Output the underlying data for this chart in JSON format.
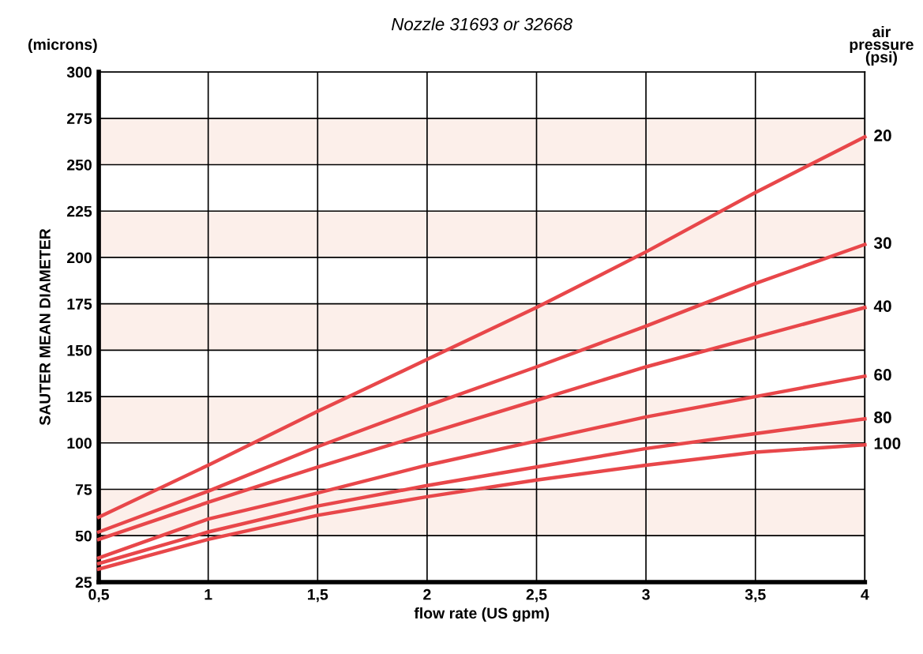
{
  "chart_data": {
    "type": "line",
    "title": "Nozzle 31693 or 32668",
    "xlabel": "flow rate (US gpm)",
    "ylabel": "SAUTER MEAN DIAMETER",
    "annotations": [
      "(microns)",
      "air\npressure\n(psi)"
    ],
    "x": [
      0.5,
      1,
      1.5,
      2,
      2.5,
      3,
      3.5,
      4
    ],
    "series": [
      {
        "name": "20",
        "color": "#e8474a",
        "values": [
          60,
          88,
          117,
          145,
          173,
          203,
          235,
          265
        ]
      },
      {
        "name": "30",
        "color": "#e8474a",
        "values": [
          52,
          74,
          98,
          120,
          141,
          163,
          186,
          207
        ]
      },
      {
        "name": "40",
        "color": "#e8474a",
        "values": [
          48,
          68,
          87,
          105,
          123,
          141,
          157,
          173
        ]
      },
      {
        "name": "60",
        "color": "#e8474a",
        "values": [
          38,
          59,
          73,
          88,
          101,
          114,
          125,
          136
        ]
      },
      {
        "name": "80",
        "color": "#e8474a",
        "values": [
          35,
          52,
          66,
          77,
          87,
          97,
          105,
          113
        ]
      },
      {
        "name": "100",
        "color": "#e8474a",
        "values": [
          32,
          48,
          61,
          71,
          80,
          88,
          95,
          99
        ]
      }
    ],
    "xlim": [
      0.5,
      4
    ],
    "xticks": [
      {
        "value": 0.5,
        "label": "0,5"
      },
      1,
      {
        "value": 1.5,
        "label": "1,5"
      },
      2,
      {
        "value": 2.5,
        "label": "2,5"
      },
      3,
      {
        "value": 3.5,
        "label": "3,5"
      },
      4
    ],
    "ylim": [
      25,
      300
    ],
    "yticks": [
      25,
      50,
      75,
      100,
      125,
      150,
      175,
      200,
      225,
      250,
      275,
      300
    ],
    "bands": [
      {
        "axis": "y",
        "from": 50,
        "to": 75,
        "color": "#fcefea"
      },
      {
        "axis": "y",
        "from": 100,
        "to": 125,
        "color": "#fcefea"
      },
      {
        "axis": "y",
        "from": 150,
        "to": 175,
        "color": "#fcefea"
      },
      {
        "axis": "y",
        "from": 200,
        "to": 225,
        "color": "#fcefea"
      },
      {
        "axis": "y",
        "from": 250,
        "to": 275,
        "color": "#fcefea"
      }
    ],
    "grid": true,
    "legend": false,
    "marker": "none",
    "line_style": "solid"
  }
}
